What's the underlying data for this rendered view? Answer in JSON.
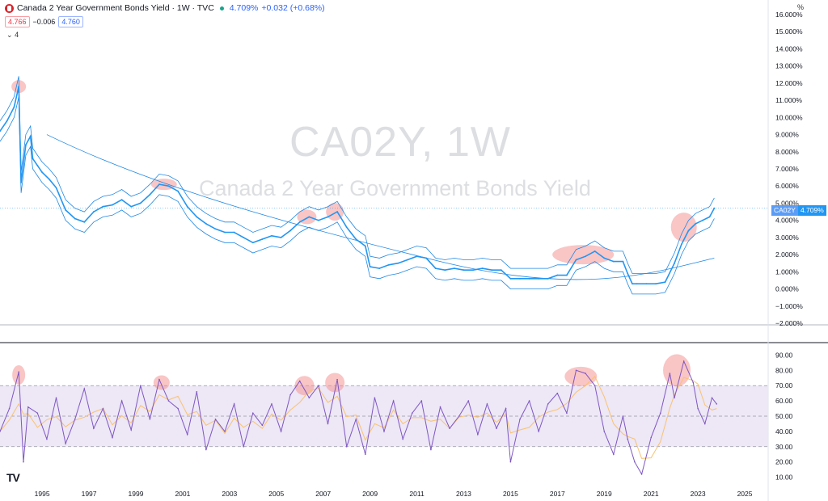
{
  "header": {
    "title": "Canada 2 Year Government Bonds Yield · 1W · TVC",
    "price": "4.709%",
    "change": "+0.032 (+0.68%)",
    "bid": "4.766",
    "spread": "−0.006",
    "ask": "4.760",
    "indicator_count": "4"
  },
  "watermark": {
    "symbol": "CA02Y, 1W",
    "name": "Canada 2 Year Government Bonds Yield"
  },
  "axis": {
    "unit": "%"
  },
  "price_badge": {
    "symbol": "CA02Y",
    "value": "4.709%"
  },
  "colors": {
    "line": "#2196f3",
    "band": "#1e88e5",
    "rsi": "#7e57c2",
    "rsi_ma": "#f9c270",
    "highlight": "#f49696",
    "rsi_band": "#ede7f6"
  },
  "chart_data": [
    {
      "type": "line",
      "title": "Canada 2 Year Government Bonds Yield",
      "xlim": [
        1993.2,
        2026.0
      ],
      "ylim": [
        -2.0,
        16.0
      ],
      "x_ticks": [
        "1995",
        "1997",
        "1999",
        "2001",
        "2003",
        "2005",
        "2007",
        "2009",
        "2011",
        "2013",
        "2015",
        "2017",
        "2019",
        "2021",
        "2023",
        "2025"
      ],
      "y_ticks": [
        "−2.000%",
        "−1.000%",
        "0.000%",
        "1.000%",
        "2.000%",
        "3.000%",
        "4.000%",
        "5.000%",
        "6.000%",
        "7.000%",
        "8.000%",
        "9.000%",
        "10.000%",
        "11.000%",
        "12.000%",
        "13.000%",
        "14.000%",
        "15.000%",
        "16.000%"
      ],
      "series": [
        {
          "x": [
            1993.2,
            1993.5,
            1993.8,
            1994.0,
            1994.1,
            1994.3,
            1994.5,
            1994.6,
            1994.8,
            1995.0,
            1995.3,
            1995.6,
            1996.0,
            1996.4,
            1996.8,
            1997.2,
            1997.6,
            1998.0,
            1998.4,
            1998.8,
            1999.2,
            1999.6,
            2000.0,
            2000.4,
            2000.8,
            2001.2,
            2001.6,
            2002.0,
            2002.4,
            2002.8,
            2003.2,
            2003.6,
            2004.0,
            2004.4,
            2004.8,
            2005.2,
            2005.6,
            2006.0,
            2006.4,
            2006.8,
            2007.2,
            2007.6,
            2008.0,
            2008.4,
            2008.8,
            2009.0,
            2009.4,
            2009.8,
            2010.2,
            2010.6,
            2011.0,
            2011.4,
            2011.8,
            2012.2,
            2012.6,
            2013.0,
            2013.4,
            2013.8,
            2014.2,
            2014.6,
            2015.0,
            2015.4,
            2015.8,
            2016.2,
            2016.6,
            2017.0,
            2017.4,
            2017.8,
            2018.2,
            2018.6,
            2019.0,
            2019.4,
            2019.8,
            2020.0,
            2020.2,
            2020.4,
            2020.8,
            2021.2,
            2021.6,
            2022.0,
            2022.3,
            2022.6,
            2022.9,
            2023.2,
            2023.5,
            2023.7
          ],
          "values": [
            9.2,
            9.8,
            10.6,
            11.8,
            6.2,
            8.4,
            8.9,
            7.6,
            7.2,
            6.8,
            6.4,
            5.9,
            4.6,
            4.1,
            3.9,
            4.5,
            4.8,
            4.9,
            5.2,
            4.8,
            5.0,
            5.5,
            6.1,
            6.0,
            5.7,
            4.8,
            4.2,
            3.8,
            3.5,
            3.3,
            3.3,
            3.0,
            2.7,
            2.9,
            3.1,
            3.0,
            3.4,
            3.9,
            4.2,
            4.0,
            4.2,
            4.5,
            3.6,
            2.9,
            2.5,
            1.3,
            1.2,
            1.4,
            1.5,
            1.7,
            1.9,
            1.8,
            1.2,
            1.1,
            1.2,
            1.1,
            1.1,
            1.2,
            1.1,
            1.1,
            0.6,
            0.6,
            0.6,
            0.6,
            0.6,
            0.8,
            0.8,
            1.7,
            1.9,
            2.2,
            1.8,
            1.6,
            1.6,
            0.9,
            0.3,
            0.3,
            0.3,
            0.3,
            0.4,
            1.5,
            2.6,
            3.4,
            3.8,
            4.0,
            4.2,
            4.709
          ]
        }
      ]
    },
    {
      "type": "line",
      "title": "RSI",
      "ylim": [
        5,
        95
      ],
      "y_ticks": [
        "10.00",
        "20.00",
        "30.00",
        "40.00",
        "50.00",
        "60.00",
        "70.00",
        "80.00",
        "90.00"
      ],
      "bands": [
        30,
        70
      ],
      "series": [
        {
          "x": [
            1993.2,
            1993.6,
            1994.0,
            1994.2,
            1994.4,
            1994.8,
            1995.2,
            1995.6,
            1996.0,
            1996.4,
            1996.8,
            1997.2,
            1997.6,
            1998.0,
            1998.4,
            1998.8,
            1999.2,
            1999.6,
            2000.0,
            2000.4,
            2000.8,
            2001.2,
            2001.6,
            2002.0,
            2002.4,
            2002.8,
            2003.2,
            2003.6,
            2004.0,
            2004.4,
            2004.8,
            2005.2,
            2005.6,
            2006.0,
            2006.4,
            2006.8,
            2007.2,
            2007.6,
            2008.0,
            2008.4,
            2008.8,
            2009.2,
            2009.6,
            2010.0,
            2010.4,
            2010.8,
            2011.2,
            2011.6,
            2012.0,
            2012.4,
            2012.8,
            2013.2,
            2013.6,
            2014.0,
            2014.4,
            2014.8,
            2015.0,
            2015.4,
            2015.8,
            2016.2,
            2016.6,
            2017.0,
            2017.4,
            2017.8,
            2018.2,
            2018.6,
            2019.0,
            2019.4,
            2019.8,
            2020.0,
            2020.3,
            2020.6,
            2021.0,
            2021.4,
            2021.8,
            2022.0,
            2022.4,
            2022.8,
            2023.0,
            2023.3,
            2023.6,
            2023.8
          ],
          "values": [
            40,
            55,
            79,
            20,
            56,
            52,
            35,
            62,
            32,
            48,
            68,
            42,
            55,
            36,
            60,
            41,
            70,
            48,
            74,
            60,
            55,
            38,
            66,
            28,
            48,
            40,
            58,
            30,
            52,
            44,
            58,
            40,
            64,
            73,
            62,
            70,
            45,
            74,
            30,
            48,
            25,
            62,
            40,
            60,
            35,
            52,
            60,
            28,
            56,
            42,
            50,
            60,
            38,
            58,
            42,
            55,
            20,
            48,
            60,
            40,
            58,
            65,
            52,
            80,
            78,
            70,
            40,
            25,
            50,
            35,
            20,
            12,
            36,
            52,
            78,
            62,
            86,
            72,
            55,
            45,
            62,
            58
          ]
        }
      ]
    }
  ]
}
